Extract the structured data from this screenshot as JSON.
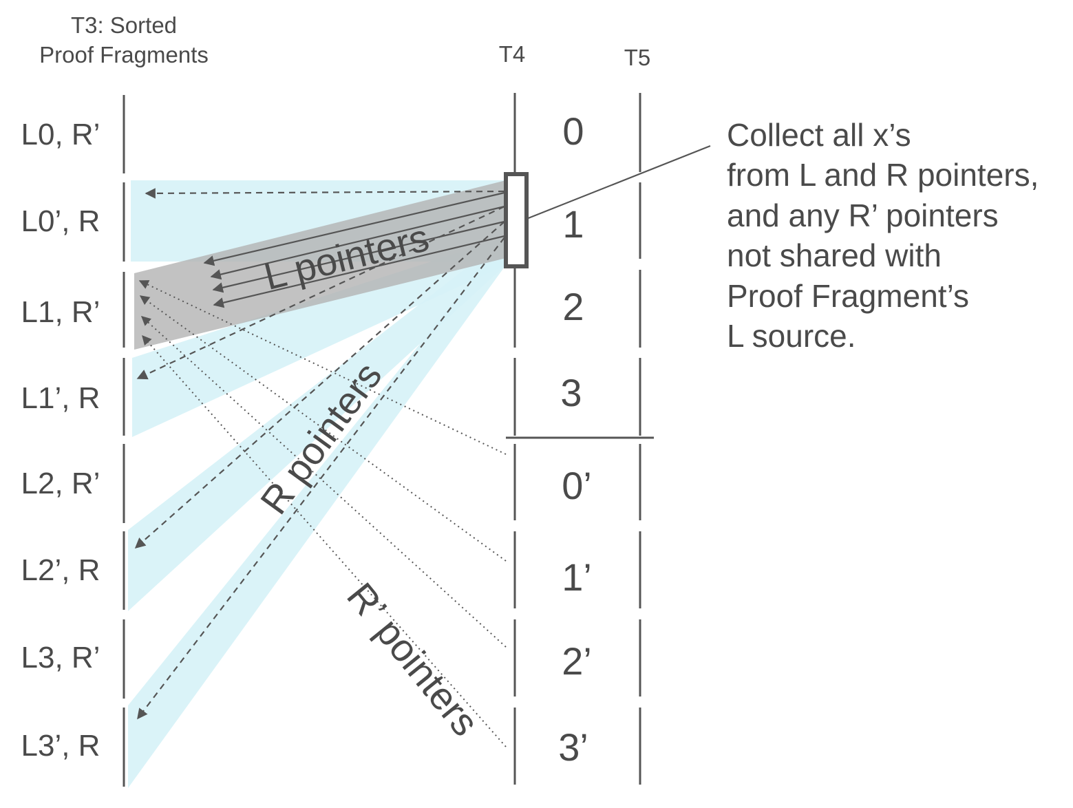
{
  "headers": {
    "t3_line1": "T3: Sorted",
    "t3_line2": "Proof Fragments",
    "t4": "T4",
    "t5": "T5"
  },
  "t3_rows": [
    "L0, R’",
    "L0’, R",
    "L1, R’",
    "L1’, R",
    "L2, R’",
    "L2’, R",
    "L3, R’",
    "L3’, R"
  ],
  "t4_rows": [
    "0",
    "1",
    "2",
    "3",
    "0’",
    "1’",
    "2’",
    "3’"
  ],
  "pointer_labels": {
    "l": "L pointers",
    "r": "R pointers",
    "rprime": "R’ pointers"
  },
  "annotation": [
    "Collect all x’s",
    "from L and R pointers,",
    "and any R’ pointers",
    "not shared with",
    "Proof Fragment’s",
    "L source."
  ],
  "colors": {
    "r_band": "#d6f2f7",
    "l_band": "#b3b3b3",
    "ink": "#555555"
  }
}
